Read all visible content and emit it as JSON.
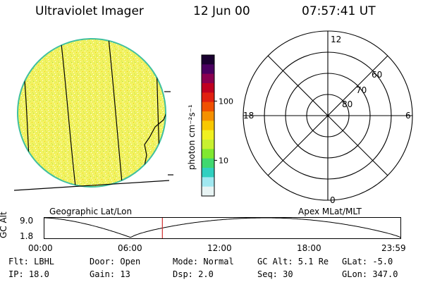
{
  "header": {
    "instrument": "Ultraviolet Imager",
    "date": "12 Jun 00",
    "time": "07:57:41 UT"
  },
  "colorbar": {
    "unit_label": "photon cm⁻²s⁻¹",
    "ticks": [
      {
        "label": "100",
        "value": 100
      },
      {
        "label": "10",
        "value": 10
      }
    ],
    "colors": [
      "#1a0030",
      "#4a0060",
      "#8a0050",
      "#c00020",
      "#e02010",
      "#f05000",
      "#f59000",
      "#f8c800",
      "#f0f020",
      "#c8f030",
      "#80e830",
      "#40d870",
      "#30d0c0",
      "#a0e8f0",
      "#e8f4f4"
    ]
  },
  "geographic_panel": {
    "label": "Geographic Lat/Lon",
    "disk_fill": "#f0f060",
    "disk_edge": "#40c0a0"
  },
  "polar_panel": {
    "label": "Apex MLat/MLT",
    "mlt_labels": {
      "top": "12",
      "left": "18",
      "right": "6",
      "bottom": "0"
    },
    "lat_labels": [
      "60",
      "70",
      "80"
    ]
  },
  "altitude_plot": {
    "ylabel": "GC Alt",
    "ytick_top": "9.0",
    "ytick_bottom": "1.8",
    "xticks": [
      "00:00",
      "06:00",
      "12:00",
      "18:00",
      "23:59"
    ],
    "marker_hour": 7.96,
    "marker_color": "#d03030"
  },
  "info_rows": [
    [
      "Flt: LBHL",
      "Door: Open",
      "Mode: Normal",
      "GC Alt: 5.1 Re",
      "GLat:  -5.0"
    ],
    [
      "IP: 18.0",
      "Gain: 13",
      "Dsp:    2.0",
      "Seq: 30",
      "GLon: 347.0"
    ]
  ]
}
